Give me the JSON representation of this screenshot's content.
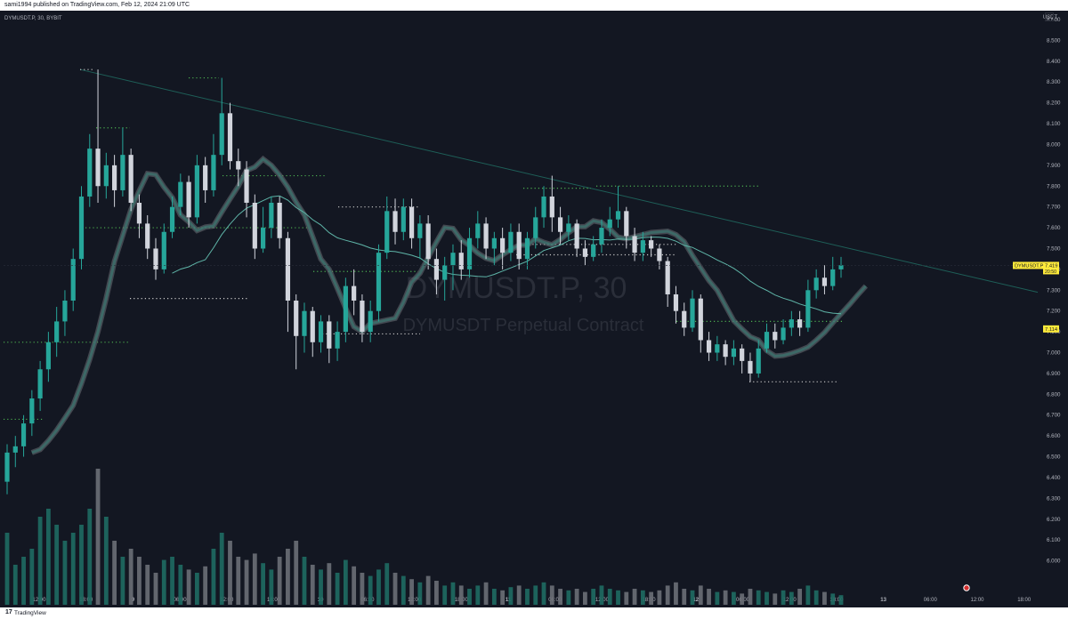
{
  "header": {
    "publish_text": "sami1994 published on TradingView.com, Feb 12, 2024 21:09 UTC"
  },
  "symbol": {
    "legend": "DYMUSDT.P, 30, BYBIT",
    "watermark_title": "DYMUSDT.P, 30",
    "watermark_subtitle": "DYMUSDT Perpetual Contract",
    "price_tag_name": "DYMUSDT.P",
    "price_tag_value": "7.419",
    "price_tag_countdown": "20:50",
    "ma_tag_value": "7.114"
  },
  "footer": {
    "brand": "TradingView"
  },
  "colors": {
    "background": "#131722",
    "up": "#26a69a",
    "down": "#d1d4dc",
    "ma_ribbon_up": "#3a8077",
    "ma_ribbon_down": "#6b6f77",
    "trendline": "#1e5f58",
    "level_dots_green": "#4caf50",
    "level_dots_white": "#c8c8c8",
    "axis_text": "#b2b5be",
    "price_tag": "#ffeb3b"
  },
  "chart_data": {
    "type": "candlestick",
    "axis_unit": "USDT",
    "ylim": [
      5.9,
      8.6
    ],
    "y_ticks": [
      "8.600",
      "8.500",
      "8.400",
      "8.300",
      "8.200",
      "8.100",
      "8.000",
      "7.900",
      "7.800",
      "7.700",
      "7.600",
      "7.500",
      "7.400",
      "7.300",
      "7.200",
      "7.100",
      "7.000",
      "6.900",
      "6.800",
      "6.700",
      "6.600",
      "6.500",
      "6.400",
      "6.300",
      "6.200",
      "6.100",
      "6.000"
    ],
    "x_ticks": [
      "12:00",
      "18:00",
      "9",
      "06:00",
      "12:00",
      "18:00",
      "10",
      "06:00",
      "12:00",
      "18:00",
      "11",
      "06:00",
      "12:00",
      "18:00",
      "12",
      "06:00",
      "12:00",
      "18:00",
      "13",
      "06:00",
      "12:00",
      "18:00"
    ],
    "last_price": 7.419,
    "ma_value": 7.114,
    "trendline": {
      "from_price": 8.36,
      "to_price": 7.29
    },
    "levels": [
      {
        "price": 8.36,
        "color": "white"
      },
      {
        "price": 8.32,
        "color": "green"
      },
      {
        "price": 8.08,
        "color": "green"
      },
      {
        "price": 7.85,
        "color": "green"
      },
      {
        "price": 7.8,
        "color": "green"
      },
      {
        "price": 7.79,
        "color": "green"
      },
      {
        "price": 7.7,
        "color": "white"
      },
      {
        "price": 7.6,
        "color": "green"
      },
      {
        "price": 7.52,
        "color": "white"
      },
      {
        "price": 7.47,
        "color": "white"
      },
      {
        "price": 7.39,
        "color": "green"
      },
      {
        "price": 7.26,
        "color": "white"
      },
      {
        "price": 7.15,
        "color": "green"
      },
      {
        "price": 7.09,
        "color": "white"
      },
      {
        "price": 7.05,
        "color": "green"
      },
      {
        "price": 6.86,
        "color": "white"
      },
      {
        "price": 6.68,
        "color": "green"
      }
    ],
    "candles": [
      [
        6.38,
        6.52,
        6.32,
        6.56
      ],
      [
        6.52,
        6.55,
        6.45,
        6.6
      ],
      [
        6.55,
        6.66,
        6.5,
        6.7
      ],
      [
        6.66,
        6.78,
        6.6,
        6.82
      ],
      [
        6.78,
        6.92,
        6.72,
        6.96
      ],
      [
        6.92,
        7.05,
        6.86,
        7.1
      ],
      [
        7.05,
        7.15,
        6.98,
        7.22
      ],
      [
        7.15,
        7.25,
        7.08,
        7.3
      ],
      [
        7.25,
        7.45,
        7.2,
        7.5
      ],
      [
        7.45,
        7.75,
        7.4,
        7.8
      ],
      [
        7.75,
        7.98,
        7.7,
        8.05
      ],
      [
        7.98,
        7.8,
        7.72,
        8.36
      ],
      [
        7.8,
        7.9,
        7.74,
        7.96
      ],
      [
        7.9,
        7.78,
        7.7,
        7.95
      ],
      [
        7.78,
        7.95,
        7.75,
        8.08
      ],
      [
        7.95,
        7.72,
        7.68,
        7.98
      ],
      [
        7.72,
        7.62,
        7.55,
        7.76
      ],
      [
        7.62,
        7.5,
        7.45,
        7.66
      ],
      [
        7.5,
        7.4,
        7.35,
        7.55
      ],
      [
        7.4,
        7.58,
        7.38,
        7.62
      ],
      [
        7.58,
        7.7,
        7.55,
        7.75
      ],
      [
        7.7,
        7.82,
        7.66,
        7.86
      ],
      [
        7.82,
        7.65,
        7.6,
        7.85
      ],
      [
        7.65,
        7.9,
        7.62,
        7.95
      ],
      [
        7.9,
        7.78,
        7.72,
        7.94
      ],
      [
        7.78,
        7.95,
        7.75,
        8.05
      ],
      [
        7.95,
        8.15,
        7.9,
        8.32
      ],
      [
        8.15,
        7.92,
        7.88,
        8.2
      ],
      [
        7.92,
        7.88,
        7.8,
        7.98
      ],
      [
        7.88,
        7.72,
        7.65,
        7.92
      ],
      [
        7.72,
        7.5,
        7.45,
        7.76
      ],
      [
        7.5,
        7.6,
        7.48,
        7.7
      ],
      [
        7.6,
        7.72,
        7.55,
        7.75
      ],
      [
        7.72,
        7.55,
        7.5,
        7.75
      ],
      [
        7.55,
        7.25,
        7.1,
        7.58
      ],
      [
        7.25,
        7.08,
        6.92,
        7.28
      ],
      [
        7.08,
        7.2,
        7.0,
        7.24
      ],
      [
        7.2,
        7.05,
        6.98,
        7.22
      ],
      [
        7.05,
        7.15,
        7.0,
        7.18
      ],
      [
        7.15,
        7.02,
        6.95,
        7.18
      ],
      [
        7.02,
        7.1,
        6.96,
        7.15
      ],
      [
        7.1,
        7.32,
        7.05,
        7.36
      ],
      [
        7.32,
        7.25,
        7.18,
        7.4
      ],
      [
        7.25,
        7.1,
        7.05,
        7.28
      ],
      [
        7.1,
        7.2,
        7.05,
        7.25
      ],
      [
        7.2,
        7.48,
        7.15,
        7.52
      ],
      [
        7.48,
        7.68,
        7.45,
        7.75
      ],
      [
        7.68,
        7.58,
        7.52,
        7.74
      ],
      [
        7.58,
        7.7,
        7.54,
        7.74
      ],
      [
        7.7,
        7.55,
        7.5,
        7.74
      ],
      [
        7.55,
        7.62,
        7.45,
        7.66
      ],
      [
        7.62,
        7.45,
        7.4,
        7.66
      ],
      [
        7.45,
        7.35,
        7.28,
        7.5
      ],
      [
        7.35,
        7.42,
        7.25,
        7.46
      ],
      [
        7.42,
        7.48,
        7.3,
        7.52
      ],
      [
        7.48,
        7.4,
        7.35,
        7.54
      ],
      [
        7.4,
        7.55,
        7.36,
        7.6
      ],
      [
        7.55,
        7.62,
        7.5,
        7.68
      ],
      [
        7.62,
        7.5,
        7.45,
        7.65
      ],
      [
        7.5,
        7.55,
        7.42,
        7.58
      ],
      [
        7.55,
        7.48,
        7.4,
        7.6
      ],
      [
        7.48,
        7.58,
        7.44,
        7.62
      ],
      [
        7.58,
        7.45,
        7.4,
        7.62
      ],
      [
        7.45,
        7.55,
        7.4,
        7.58
      ],
      [
        7.55,
        7.65,
        7.5,
        7.7
      ],
      [
        7.65,
        7.75,
        7.6,
        7.8
      ],
      [
        7.75,
        7.65,
        7.58,
        7.85
      ],
      [
        7.65,
        7.58,
        7.52,
        7.7
      ],
      [
        7.58,
        7.62,
        7.54,
        7.66
      ],
      [
        7.62,
        7.5,
        7.46,
        7.64
      ],
      [
        7.5,
        7.46,
        7.42,
        7.54
      ],
      [
        7.46,
        7.52,
        7.44,
        7.56
      ],
      [
        7.52,
        7.6,
        7.48,
        7.64
      ],
      [
        7.6,
        7.64,
        7.56,
        7.7
      ],
      [
        7.64,
        7.68,
        7.6,
        7.8
      ],
      [
        7.68,
        7.56,
        7.5,
        7.7
      ],
      [
        7.56,
        7.48,
        7.44,
        7.6
      ],
      [
        7.48,
        7.54,
        7.44,
        7.58
      ],
      [
        7.54,
        7.5,
        7.46,
        7.56
      ],
      [
        7.5,
        7.44,
        7.4,
        7.52
      ],
      [
        7.44,
        7.28,
        7.22,
        7.46
      ],
      [
        7.28,
        7.2,
        7.14,
        7.32
      ],
      [
        7.2,
        7.12,
        7.08,
        7.24
      ],
      [
        7.12,
        7.26,
        7.1,
        7.3
      ],
      [
        7.26,
        7.06,
        7.0,
        7.28
      ],
      [
        7.06,
        7.0,
        6.96,
        7.1
      ],
      [
        7.0,
        7.04,
        6.96,
        7.08
      ],
      [
        7.04,
        6.98,
        6.94,
        7.06
      ],
      [
        6.98,
        7.02,
        6.94,
        7.06
      ],
      [
        7.02,
        6.96,
        6.9,
        7.04
      ],
      [
        6.96,
        6.9,
        6.86,
        7.0
      ],
      [
        6.9,
        7.02,
        6.88,
        7.06
      ],
      [
        7.02,
        7.1,
        7.0,
        7.14
      ],
      [
        7.1,
        7.06,
        7.02,
        7.14
      ],
      [
        7.06,
        7.12,
        7.04,
        7.16
      ],
      [
        7.12,
        7.16,
        7.08,
        7.2
      ],
      [
        7.16,
        7.12,
        7.08,
        7.2
      ],
      [
        7.12,
        7.3,
        7.1,
        7.35
      ],
      [
        7.3,
        7.36,
        7.26,
        7.4
      ],
      [
        7.36,
        7.32,
        7.28,
        7.42
      ],
      [
        7.32,
        7.4,
        7.3,
        7.46
      ],
      [
        7.4,
        7.42,
        7.36,
        7.46
      ]
    ],
    "volumes": [
      0.45,
      0.25,
      0.3,
      0.35,
      0.55,
      0.6,
      0.5,
      0.4,
      0.45,
      0.5,
      0.6,
      0.85,
      0.55,
      0.4,
      0.3,
      0.35,
      0.3,
      0.25,
      0.2,
      0.28,
      0.3,
      0.25,
      0.22,
      0.2,
      0.24,
      0.35,
      0.45,
      0.4,
      0.3,
      0.28,
      0.32,
      0.26,
      0.22,
      0.3,
      0.35,
      0.4,
      0.3,
      0.25,
      0.22,
      0.26,
      0.2,
      0.28,
      0.24,
      0.2,
      0.18,
      0.22,
      0.26,
      0.2,
      0.18,
      0.16,
      0.14,
      0.18,
      0.15,
      0.12,
      0.14,
      0.12,
      0.1,
      0.12,
      0.14,
      0.1,
      0.09,
      0.11,
      0.12,
      0.1,
      0.12,
      0.14,
      0.12,
      0.1,
      0.09,
      0.1,
      0.08,
      0.1,
      0.12,
      0.1,
      0.09,
      0.08,
      0.1,
      0.09,
      0.08,
      0.09,
      0.12,
      0.14,
      0.1,
      0.09,
      0.12,
      0.1,
      0.08,
      0.09,
      0.08,
      0.07,
      0.1,
      0.09,
      0.08,
      0.07,
      0.09,
      0.08,
      0.1,
      0.12,
      0.09,
      0.08,
      0.07,
      0.06
    ]
  }
}
